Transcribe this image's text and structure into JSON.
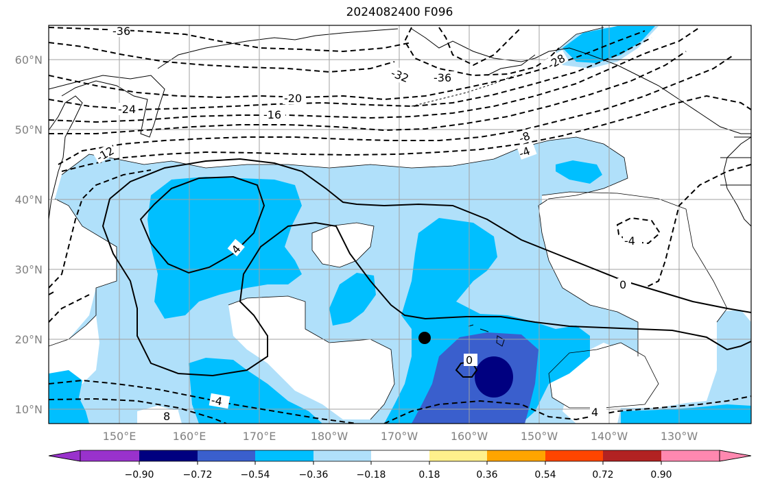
{
  "title": "2024082400 F096",
  "lat_labels": [
    "60°N",
    "50°N",
    "40°N",
    "30°N",
    "20°N",
    "10°N"
  ],
  "lon_labels": [
    "150°E",
    "160°E",
    "170°E",
    "180°W",
    "170°W",
    "160°W",
    "150°W",
    "140°W",
    "130°W"
  ],
  "colorbar": {
    "ticks": [
      "−0.90",
      "−0.72",
      "−0.54",
      "−0.36",
      "−0.18",
      "0.18",
      "0.36",
      "0.54",
      "0.72",
      "0.90"
    ],
    "colors": [
      "#9932cc",
      "#000080",
      "#3a5fcd",
      "#00bfff",
      "#b0e0fa",
      "#ffffff",
      "#fff08c",
      "#ffa500",
      "#ff4500",
      "#b22222",
      "#ff88b0"
    ]
  },
  "fill_colors": {
    "light_blue": "#b0e0fa",
    "sky_blue": "#00bfff",
    "royal_blue": "#3a5fcd",
    "navy": "#000080"
  },
  "contour_labels": [
    "-36",
    "-32",
    "-36",
    "-28",
    "-24",
    "-20",
    "-16",
    "-12",
    "-8",
    "-4",
    "4",
    "0",
    "0",
    "-4",
    "-4",
    "4",
    "-4",
    "8"
  ]
}
